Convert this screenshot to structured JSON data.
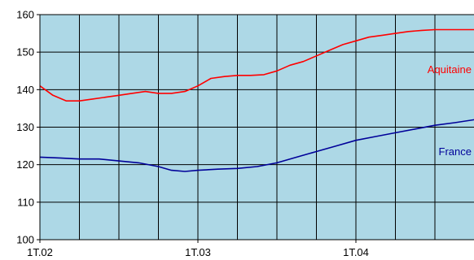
{
  "chart_data": {
    "type": "line",
    "title": "",
    "xlabel": "",
    "ylabel": "",
    "ylim": [
      100,
      160
    ],
    "yticks": [
      "100",
      "110",
      "120",
      "130",
      "140",
      "150",
      "160"
    ],
    "xlim": [
      0,
      11
    ],
    "xticks": [
      {
        "label": "1T.02",
        "x": 0
      },
      {
        "label": "1T.03",
        "x": 4
      },
      {
        "label": "1T.04",
        "x": 8
      }
    ],
    "grid": true,
    "plot_background": "#add8e6",
    "gridline_color": "#000000",
    "series": [
      {
        "name": "Aquitaine",
        "color": "#ff0000",
        "x": [
          0,
          0.33,
          0.67,
          1,
          1.33,
          1.67,
          2,
          2.33,
          2.67,
          3,
          3.33,
          3.67,
          4,
          4.33,
          4.67,
          5,
          5.33,
          5.67,
          6,
          6.33,
          6.67,
          7,
          7.33,
          7.67,
          8,
          8.33,
          8.67,
          9,
          9.33,
          9.67,
          10,
          10.33,
          10.67,
          11
        ],
        "values": [
          141,
          138.5,
          137,
          137,
          137.5,
          138,
          138.5,
          139,
          139.5,
          139,
          139,
          139.5,
          141,
          143,
          143.5,
          143.8,
          143.8,
          144,
          145,
          146.5,
          147.5,
          149,
          150.5,
          152,
          153,
          154,
          154.5,
          155,
          155.5,
          155.8,
          156,
          156,
          156,
          156
        ]
      },
      {
        "name": "France",
        "color": "#000099",
        "x": [
          0,
          0.5,
          1,
          1.5,
          2,
          2.5,
          3,
          3.33,
          3.67,
          4,
          4.5,
          5,
          5.5,
          6,
          6.5,
          7,
          7.5,
          8,
          8.5,
          9,
          9.5,
          10,
          10.5,
          11
        ],
        "values": [
          122,
          121.8,
          121.5,
          121.5,
          121,
          120.5,
          119.5,
          118.5,
          118.2,
          118.5,
          118.8,
          119,
          119.5,
          120.5,
          122,
          123.5,
          125,
          126.5,
          127.5,
          128.5,
          129.5,
          130.5,
          131.2,
          132
        ]
      }
    ]
  }
}
